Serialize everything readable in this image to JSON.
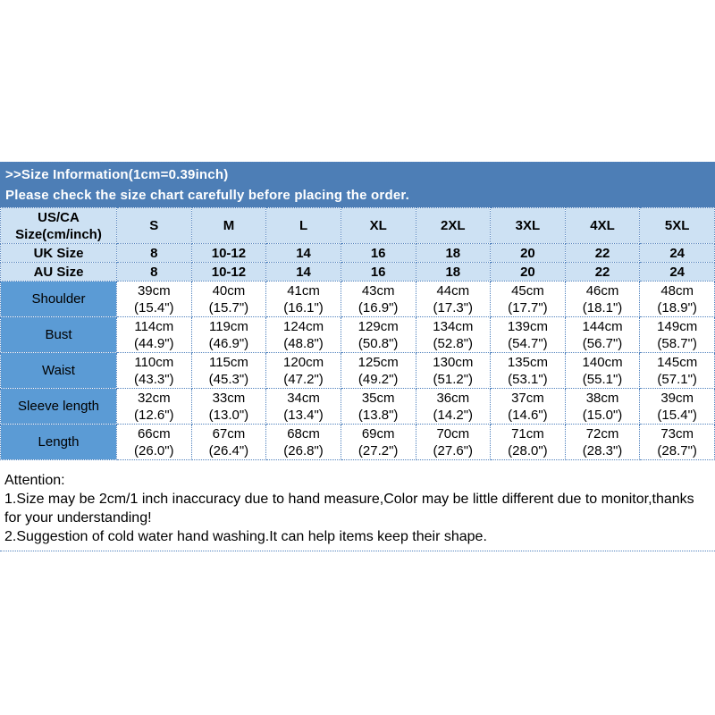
{
  "banner": {
    "line1": ">>Size Information(1cm=0.39inch)",
    "line2": "Please check the size chart carefully before placing the order."
  },
  "table": {
    "corner_line1": "US/CA",
    "corner_line2": "Size(cm/inch)",
    "size_headers": [
      "S",
      "M",
      "L",
      "XL",
      "2XL",
      "3XL",
      "4XL",
      "5XL"
    ],
    "size_rows": [
      {
        "label": "UK Size",
        "values": [
          "8",
          "10-12",
          "14",
          "16",
          "18",
          "20",
          "22",
          "24"
        ]
      },
      {
        "label": "AU Size",
        "values": [
          "8",
          "10-12",
          "14",
          "16",
          "18",
          "20",
          "22",
          "24"
        ]
      }
    ],
    "measurement_rows": [
      {
        "label": "Shoulder",
        "values": [
          {
            "cm": "39cm",
            "inch": "(15.4\")"
          },
          {
            "cm": "40cm",
            "inch": "(15.7\")"
          },
          {
            "cm": "41cm",
            "inch": "(16.1\")"
          },
          {
            "cm": "43cm",
            "inch": "(16.9\")"
          },
          {
            "cm": "44cm",
            "inch": "(17.3\")"
          },
          {
            "cm": "45cm",
            "inch": "(17.7\")"
          },
          {
            "cm": "46cm",
            "inch": "(18.1\")"
          },
          {
            "cm": "48cm",
            "inch": "(18.9\")"
          }
        ]
      },
      {
        "label": "Bust",
        "values": [
          {
            "cm": "114cm",
            "inch": "(44.9\")"
          },
          {
            "cm": "119cm",
            "inch": "(46.9\")"
          },
          {
            "cm": "124cm",
            "inch": "(48.8\")"
          },
          {
            "cm": "129cm",
            "inch": "(50.8\")"
          },
          {
            "cm": "134cm",
            "inch": "(52.8\")"
          },
          {
            "cm": "139cm",
            "inch": "(54.7\")"
          },
          {
            "cm": "144cm",
            "inch": "(56.7\")"
          },
          {
            "cm": "149cm",
            "inch": "(58.7\")"
          }
        ]
      },
      {
        "label": "Waist",
        "values": [
          {
            "cm": "110cm",
            "inch": "(43.3\")"
          },
          {
            "cm": "115cm",
            "inch": "(45.3\")"
          },
          {
            "cm": "120cm",
            "inch": "(47.2\")"
          },
          {
            "cm": "125cm",
            "inch": "(49.2\")"
          },
          {
            "cm": "130cm",
            "inch": "(51.2\")"
          },
          {
            "cm": "135cm",
            "inch": "(53.1\")"
          },
          {
            "cm": "140cm",
            "inch": "(55.1\")"
          },
          {
            "cm": "145cm",
            "inch": "(57.1\")"
          }
        ]
      },
      {
        "label": "Sleeve length",
        "values": [
          {
            "cm": "32cm",
            "inch": "(12.6\")"
          },
          {
            "cm": "33cm",
            "inch": "(13.0\")"
          },
          {
            "cm": "34cm",
            "inch": "(13.4\")"
          },
          {
            "cm": "35cm",
            "inch": "(13.8\")"
          },
          {
            "cm": "36cm",
            "inch": "(14.2\")"
          },
          {
            "cm": "37cm",
            "inch": "(14.6\")"
          },
          {
            "cm": "38cm",
            "inch": "(15.0\")"
          },
          {
            "cm": "39cm",
            "inch": "(15.4\")"
          }
        ]
      },
      {
        "label": "Length",
        "values": [
          {
            "cm": "66cm",
            "inch": "(26.0\")"
          },
          {
            "cm": "67cm",
            "inch": "(26.4\")"
          },
          {
            "cm": "68cm",
            "inch": "(26.8\")"
          },
          {
            "cm": "69cm",
            "inch": "(27.2\")"
          },
          {
            "cm": "70cm",
            "inch": "(27.6\")"
          },
          {
            "cm": "71cm",
            "inch": "(28.0\")"
          },
          {
            "cm": "72cm",
            "inch": "(28.3\")"
          },
          {
            "cm": "73cm",
            "inch": "(28.7\")"
          }
        ]
      }
    ]
  },
  "attention": {
    "title": "Attention:",
    "note1": "1.Size may be 2cm/1 inch inaccuracy due to hand measure,Color may be little different due to monitor,thanks for your understanding!",
    "note2": "2.Suggestion of cold water hand washing.It can help items keep their shape."
  },
  "colors": {
    "banner_bg": "#4d7eb6",
    "header_bg": "#cde1f3",
    "label_col_bg": "#5b9bd5",
    "border": "#4f81bd"
  }
}
